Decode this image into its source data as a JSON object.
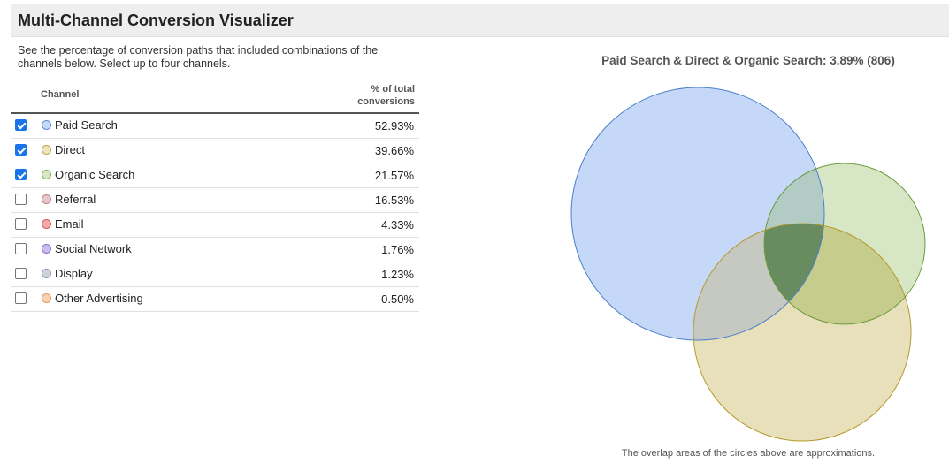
{
  "header": {
    "title": "Multi-Channel Conversion Visualizer"
  },
  "description": "See the percentage of conversion paths that included combinations of the channels below. Select up to four channels.",
  "table": {
    "col_channel": "Channel",
    "col_pct_line1": "% of total",
    "col_pct_line2": "conversions",
    "rows": [
      {
        "label": "Paid Search",
        "pct": "52.93%",
        "checked": true,
        "color": "#c5d8f7",
        "border": "#5b8ed6"
      },
      {
        "label": "Direct",
        "pct": "39.66%",
        "checked": true,
        "color": "#ede3bd",
        "border": "#c2a94f"
      },
      {
        "label": "Organic Search",
        "pct": "21.57%",
        "checked": true,
        "color": "#d7e7c6",
        "border": "#7fae57"
      },
      {
        "label": "Referral",
        "pct": "16.53%",
        "checked": false,
        "color": "#e8c7c9",
        "border": "#b88b8e"
      },
      {
        "label": "Email",
        "pct": "4.33%",
        "checked": false,
        "color": "#f4a7a7",
        "border": "#d65c5c"
      },
      {
        "label": "Social Network",
        "pct": "1.76%",
        "checked": false,
        "color": "#cbbdf0",
        "border": "#8a72d4"
      },
      {
        "label": "Display",
        "pct": "1.23%",
        "checked": false,
        "color": "#cdd3de",
        "border": "#8e99ad"
      },
      {
        "label": "Other Advertising",
        "pct": "0.50%",
        "checked": false,
        "color": "#f8d2b5",
        "border": "#e59a5f"
      }
    ]
  },
  "venn": {
    "title": "Paid Search & Direct & Organic Search: 3.89% (806)",
    "footnote": "The overlap areas of the circles above are approximations.",
    "colors": {
      "paid_search_fill": "#c5d8f7",
      "paid_search_stroke": "#4a7fc9",
      "direct_fill": "#e8e0bb",
      "direct_stroke": "#b59a2a",
      "organic_fill": "#d7e7c6",
      "organic_stroke": "#6c9a3c",
      "triple_overlap": "#688c5f"
    }
  }
}
